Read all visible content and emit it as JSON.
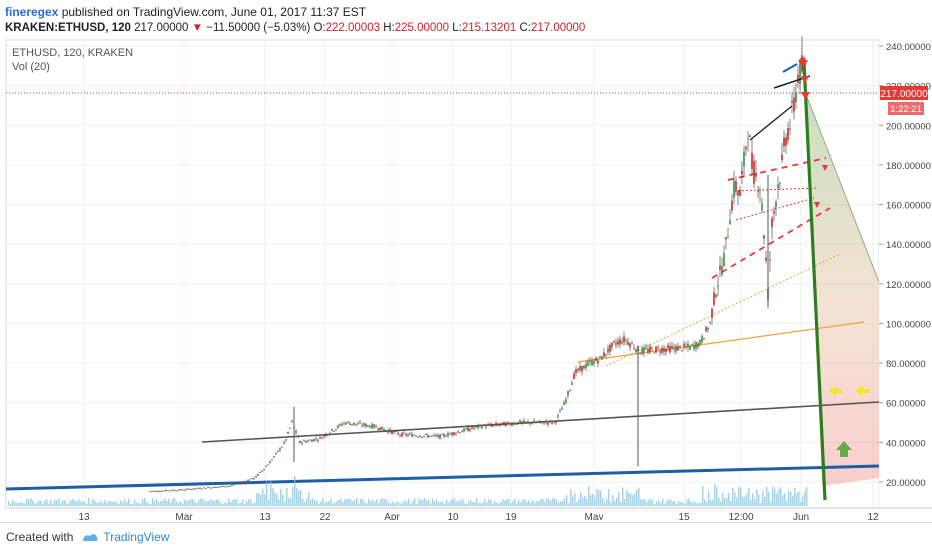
{
  "header": {
    "author": "fineregex",
    "published": "published on TradingView.com, June 01, 2017 11:37 EST",
    "symbol": "KRAKEN:ETHUSD, 120",
    "last": "217.00000",
    "change": "−11.50000 (−5.03%)",
    "o_label": "O:",
    "o_val": "222.00003",
    "h_label": "H:",
    "h_val": "225.00000",
    "l_label": "L:",
    "l_val": "215.13201",
    "c_label": "C:",
    "c_val": "217.00000"
  },
  "chart": {
    "legend_symbol": "ETHUSD, 120, KRAKEN",
    "legend_vol": "Vol (20)",
    "price_ticks": [
      "240.00000",
      "220.00000",
      "200.00000",
      "180.00000",
      "160.00000",
      "140.00000",
      "120.00000",
      "100.00000",
      "80.00000",
      "60.00000",
      "40.00000",
      "20.00000"
    ],
    "last_price_label": "217.00000",
    "countdown_label": "1:22:21",
    "time_ticks": [
      "13",
      "Mar",
      "13",
      "22",
      "Apr",
      "10",
      "19",
      "May",
      "15",
      "12:00",
      "Jun",
      "12"
    ],
    "colors": {
      "up": "#2e7d32",
      "down": "#c62828",
      "accent_green": "#2e7d1f",
      "accent_red": "#e53935",
      "blue_line": "#1e5ea8",
      "price_label_bg": "#e53935"
    }
  },
  "footer": {
    "created_with": "Created with",
    "brand": "TradingView"
  }
}
